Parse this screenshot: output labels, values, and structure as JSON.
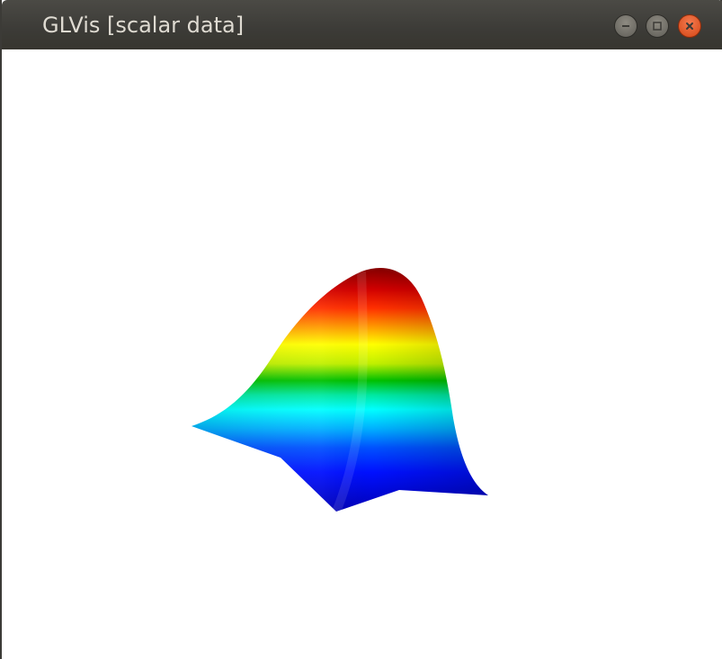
{
  "window": {
    "title": "GLVis [scalar data]",
    "controls": {
      "minimize_icon": "minimize-icon",
      "maximize_icon": "maximize-icon",
      "close_icon": "close-icon"
    }
  },
  "viewport": {
    "content": "3D surface plot of scalar data",
    "colormap": [
      "#0000b0",
      "#0000ff",
      "#0090ff",
      "#00ffff",
      "#00c000",
      "#ffff00",
      "#ff8000",
      "#ff0000",
      "#900000"
    ]
  }
}
